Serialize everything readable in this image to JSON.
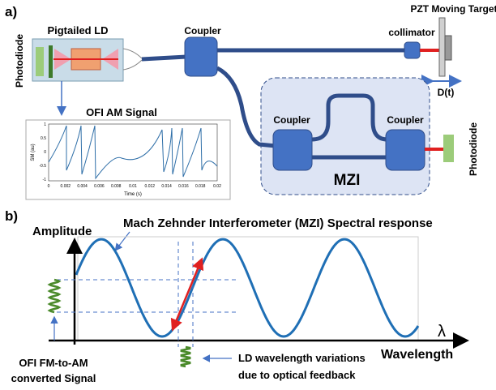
{
  "part_a": {
    "label": "a)",
    "laser": {
      "title": "Pigtailed LD",
      "photodiode": "Photodiode"
    },
    "coupler": "Coupler",
    "collimator": "collimator",
    "target": "PZT Moving Target",
    "displacement": "D(t)",
    "inset": {
      "title": "OFI AM Signal",
      "y_label": "SM (au)",
      "x_label": "Time (s)",
      "y_ticks": [
        "1",
        "0.5",
        "0",
        "-0.5",
        "-1"
      ],
      "x_ticks": [
        "0",
        "0.002",
        "0.004",
        "0.006",
        "0.008",
        "0.01",
        "0.012",
        "0.014",
        "0.016",
        "0.018",
        "0.02"
      ]
    },
    "mzi": {
      "label": "MZI",
      "coupler_left": "Coupler",
      "coupler_right": "Coupler",
      "photodiode": "Photodiode"
    }
  },
  "part_b": {
    "label": "b)",
    "y_axis": "Amplitude",
    "title": "Mach Zehnder Interferometer (MZI) Spectral response",
    "lambda": "λ",
    "x_axis": "Wavelength",
    "left_note": [
      "OFI FM-to-AM",
      "converted Signal"
    ],
    "bottom_note": [
      "LD wavelength variations",
      "due to optical feedback"
    ]
  }
}
